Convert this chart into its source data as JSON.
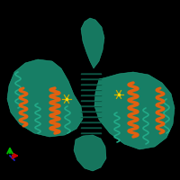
{
  "background_color": "#000000",
  "figure_size": [
    2.0,
    2.0
  ],
  "dpi": 100,
  "protein_color_teal": "#1a8a6e",
  "protein_color_teal2": "#22aa88",
  "protein_color_orange": "#e06010",
  "protein_color_dark_teal": "#0d5c48",
  "axis_x_color": "#cc0000",
  "axis_y_color": "#00bb00",
  "axis_z_color": "#2222cc"
}
